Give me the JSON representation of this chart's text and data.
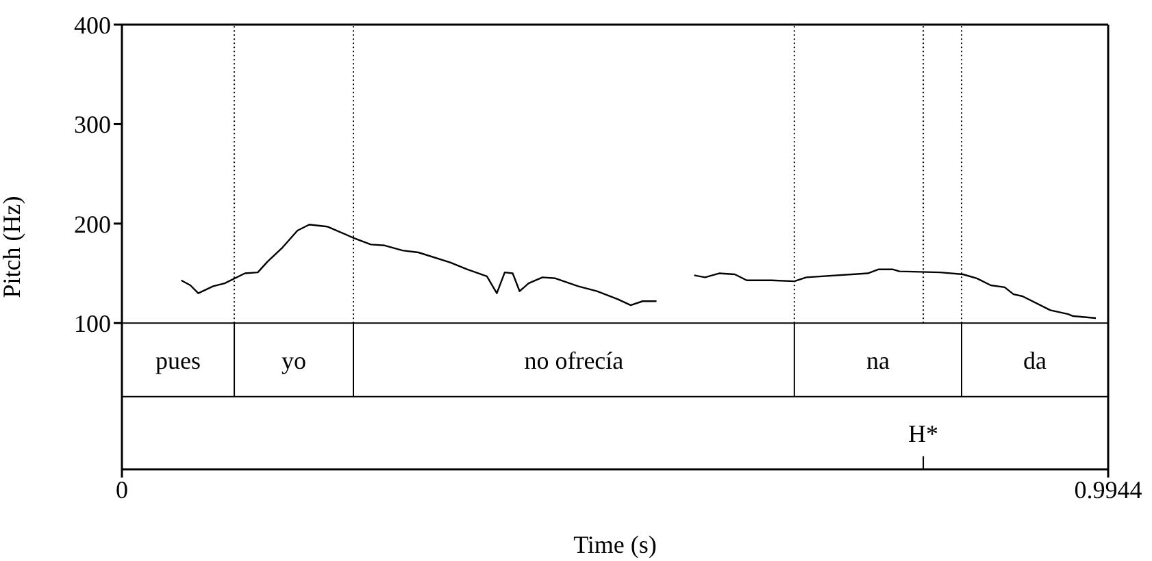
{
  "chart_data": {
    "type": "line",
    "xlabel": "Time (s)",
    "ylabel": "Pitch (Hz)",
    "xlim": [
      0,
      0.9944
    ],
    "xticks": [
      0,
      0.9944
    ],
    "ylim": [
      -47,
      400
    ],
    "yticks": [
      100,
      200,
      300,
      400
    ],
    "marker": "none",
    "line_style": "solid",
    "x": [
      0.0598,
      0.069,
      0.077,
      0.092,
      0.1036,
      0.124,
      0.137,
      0.147,
      0.161,
      0.177,
      0.189,
      0.207,
      0.235,
      0.251,
      0.265,
      0.283,
      0.299,
      0.331,
      0.348,
      0.368,
      0.378,
      0.386,
      0.394,
      0.401,
      0.41,
      0.424,
      0.437,
      0.46,
      0.479,
      0.5,
      0.513,
      0.525,
      0.539,
      0.555,
      0.577,
      0.588,
      0.602,
      0.618,
      0.63,
      0.655,
      0.678,
      0.69,
      0.752,
      0.763,
      0.777,
      0.784,
      0.825,
      0.848,
      0.862,
      0.876,
      0.89,
      0.899,
      0.908,
      0.936,
      0.954,
      0.959,
      0.982
    ],
    "series": [
      {
        "color": "#000000",
        "values": [
          143,
          138,
          130,
          137,
          140,
          150,
          151,
          162,
          175,
          193,
          199,
          197,
          185,
          179,
          178,
          173,
          171,
          161,
          154,
          147,
          130,
          151,
          150,
          132,
          140,
          146,
          145,
          137,
          132,
          124,
          118,
          122,
          122,
          null,
          148,
          146,
          150,
          149,
          143,
          143,
          142,
          146,
          150,
          154,
          154,
          152,
          151,
          149,
          145,
          138,
          136,
          129,
          127,
          113,
          109,
          107,
          105
        ]
      }
    ],
    "ref_lines": [
      {
        "axis": "y",
        "value": 100,
        "color": "#000000",
        "line_style": "solid"
      },
      {
        "axis": "y",
        "value": 26,
        "color": "#000000",
        "line_style": "solid"
      },
      {
        "axis": "x",
        "value": 0.1133,
        "color": "#000000",
        "line_style": "dotted"
      },
      {
        "axis": "x",
        "value": 0.2334,
        "color": "#000000",
        "line_style": "dotted"
      },
      {
        "axis": "x",
        "value": 0.678,
        "color": "#000000",
        "line_style": "dotted"
      },
      {
        "axis": "x",
        "value": 0.808,
        "color": "#000000",
        "line_style": "dotted",
        "label": "H*"
      },
      {
        "axis": "x",
        "value": 0.8466,
        "color": "#000000",
        "line_style": "dotted"
      },
      {
        "axis": "x",
        "value": 0.1133,
        "color": "#000000",
        "line_style": "solid"
      },
      {
        "axis": "x",
        "value": 0.2334,
        "color": "#000000",
        "line_style": "solid"
      },
      {
        "axis": "x",
        "value": 0.678,
        "color": "#000000",
        "line_style": "solid"
      },
      {
        "axis": "x",
        "value": 0.8466,
        "color": "#000000",
        "line_style": "solid"
      }
    ],
    "annotations": [
      "pues",
      "yo",
      "no ofrecía",
      "na",
      "da"
    ]
  }
}
